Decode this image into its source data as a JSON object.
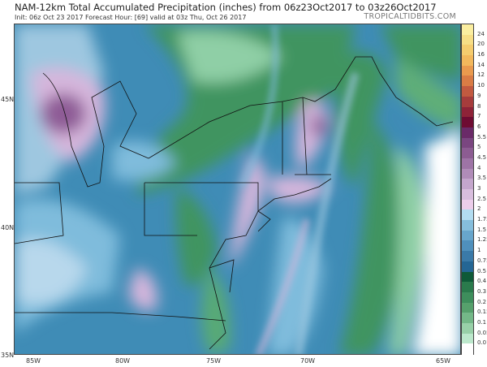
{
  "header": {
    "title": "NAM-12km Total Accumulated Precipitation (inches) from 06z23Oct2017 to 03z26Oct2017",
    "subtitle": "Init: 06z Oct 23 2017   Forecast Hour: [69]   valid at 03z Thu, Oct 26 2017",
    "brand": "TROPICALTIDBITS.COM"
  },
  "axes": {
    "latitudes": [
      "45N",
      "40N",
      "35N"
    ],
    "longitudes": [
      "85W",
      "80W",
      "75W",
      "70W",
      "65W"
    ]
  },
  "colorbar": {
    "labels": [
      "24",
      "20",
      "16",
      "14",
      "12",
      "10",
      "9",
      "8",
      "7",
      "6",
      "5.5",
      "5",
      "4.5",
      "4",
      "3.5",
      "3",
      "2.5",
      "2",
      "1.75",
      "1.5",
      "1.25",
      "1",
      "0.75",
      "0.5",
      "0.4",
      "0.3",
      "0.2",
      "0.15",
      "0.1",
      "0.05",
      "0.01"
    ],
    "colors": [
      "#fbeea0",
      "#f7de86",
      "#f5cc6e",
      "#f2b85c",
      "#e99a4e",
      "#d97c45",
      "#c25a40",
      "#a63c3c",
      "#8e2338",
      "#6e0b32",
      "#6a2a68",
      "#7a4680",
      "#8c5c92",
      "#9e74a6",
      "#b08cb8",
      "#c4a6cc",
      "#d8bedd",
      "#eccdea",
      "#b2dcf0",
      "#86bedc",
      "#68a6cc",
      "#4f90bc",
      "#3a7aa8",
      "#246694",
      "#0e5a38",
      "#2a7a4c",
      "#3e8e5c",
      "#56a06c",
      "#74b888",
      "#98d0a8",
      "#bce8cc",
      "#ffffff"
    ]
  },
  "map": {
    "palette": {
      "blue": "#3f8cb6",
      "lightblue": "#7fbcdc",
      "green": "#3f9460",
      "lightgreen": "#8fcfa6",
      "pink": "#d6b6dc",
      "purple": "#8e5c96",
      "white": "#ffffff"
    }
  }
}
